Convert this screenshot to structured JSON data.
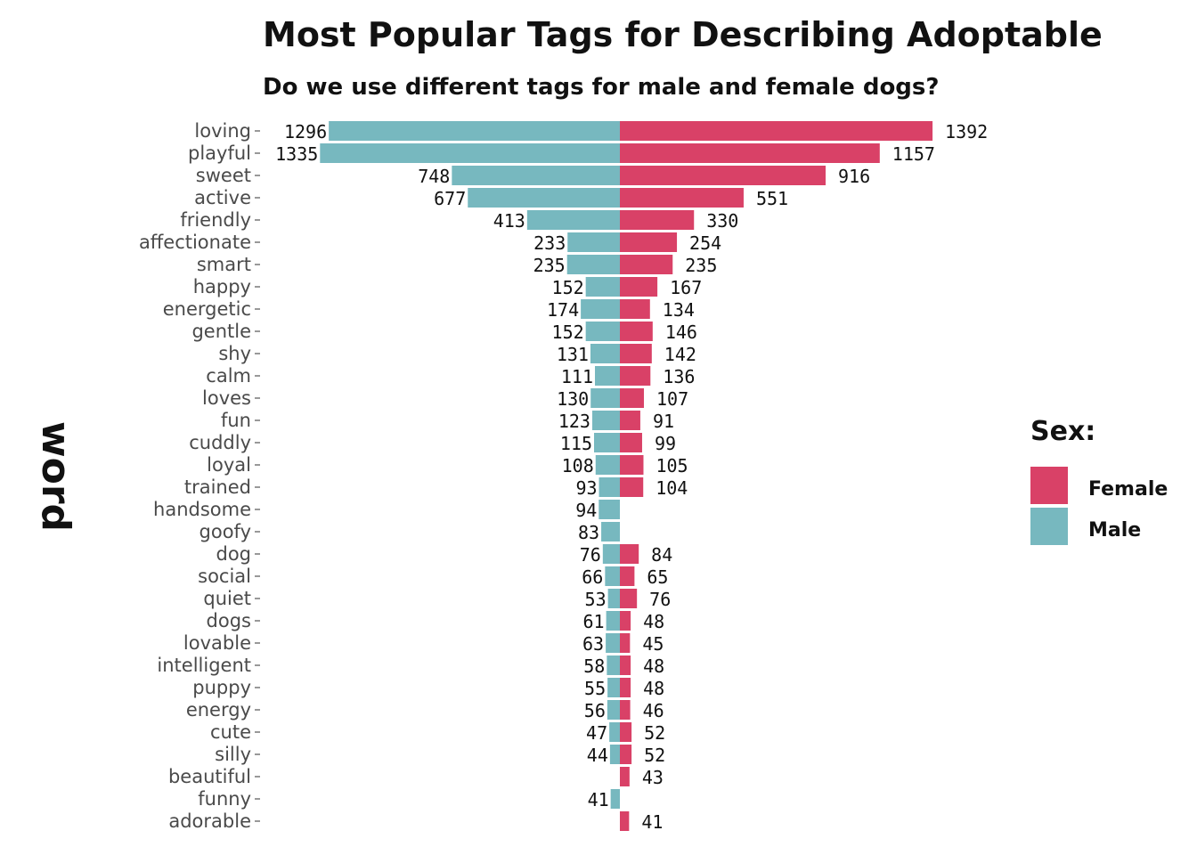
{
  "chart_data": {
    "type": "bar",
    "orientation": "horizontal-diverging",
    "title": "Most Popular Tags for Describing Adoptable",
    "subtitle": "Do we use different tags for male and female dogs?",
    "ylabel": "word",
    "xlabel": "",
    "legend": {
      "title": "Sex:",
      "position": "right"
    },
    "categories": [
      "loving",
      "playful",
      "sweet",
      "active",
      "friendly",
      "affectionate",
      "smart",
      "happy",
      "energetic",
      "gentle",
      "shy",
      "calm",
      "loves",
      "fun",
      "cuddly",
      "loyal",
      "trained",
      "handsome",
      "goofy",
      "dog",
      "social",
      "quiet",
      "dogs",
      "lovable",
      "intelligent",
      "puppy",
      "energy",
      "cute",
      "silly",
      "beautiful",
      "funny",
      "adorable"
    ],
    "series": [
      {
        "name": "Female",
        "color": "#D94167",
        "values": [
          1392,
          1157,
          916,
          551,
          330,
          254,
          235,
          167,
          134,
          146,
          142,
          136,
          107,
          91,
          99,
          105,
          104,
          null,
          null,
          84,
          65,
          76,
          48,
          45,
          48,
          48,
          46,
          52,
          52,
          43,
          null,
          41
        ]
      },
      {
        "name": "Male",
        "color": "#77B8BF",
        "values": [
          1296,
          1335,
          748,
          677,
          413,
          233,
          235,
          152,
          174,
          152,
          131,
          111,
          130,
          123,
          115,
          108,
          93,
          94,
          83,
          76,
          66,
          53,
          61,
          63,
          58,
          55,
          56,
          47,
          44,
          null,
          41,
          null
        ]
      }
    ],
    "xlim": [
      -1400,
      1400
    ],
    "grid": false
  }
}
